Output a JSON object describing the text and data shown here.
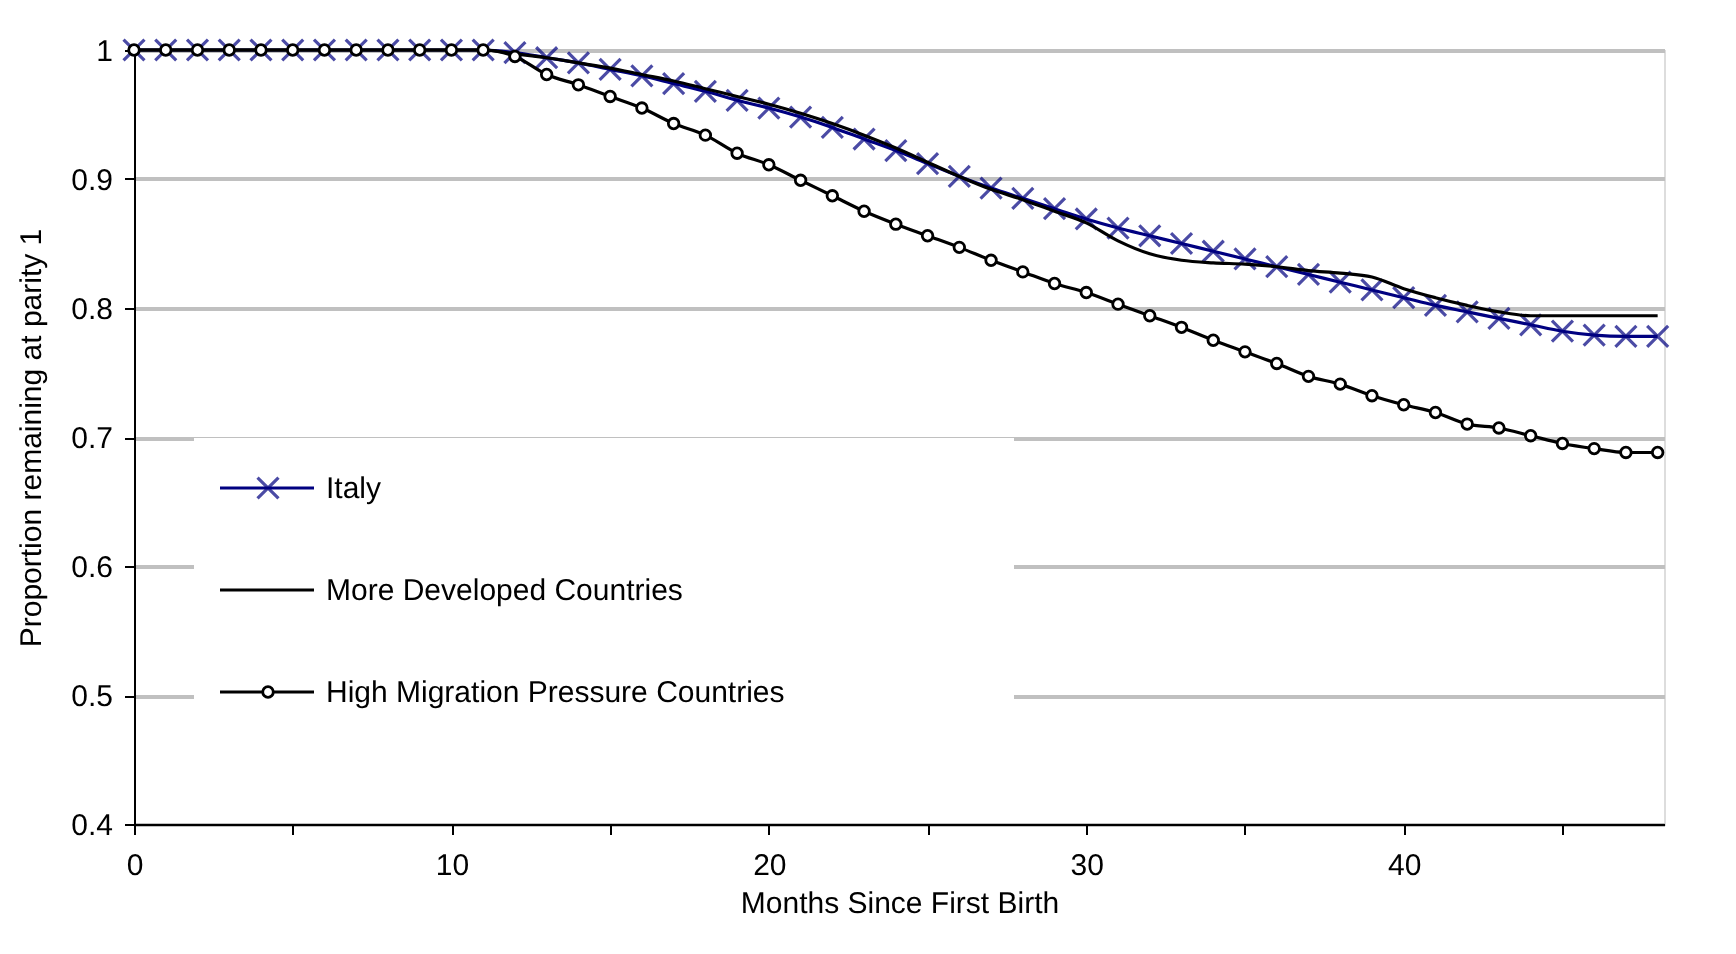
{
  "chart_data": {
    "type": "line",
    "xlabel": "Months Since First Birth",
    "ylabel": "Proportion remaining at parity 1",
    "x": [
      0,
      1,
      2,
      3,
      4,
      5,
      6,
      7,
      8,
      9,
      10,
      11,
      12,
      13,
      14,
      15,
      16,
      17,
      18,
      19,
      20,
      21,
      22,
      23,
      24,
      25,
      26,
      27,
      28,
      29,
      30,
      31,
      32,
      33,
      34,
      35,
      36,
      37,
      38,
      39,
      40,
      41,
      42,
      43,
      44,
      45,
      46,
      47,
      48
    ],
    "xlim": [
      0,
      48.2
    ],
    "xticks": [
      0,
      {
        "value": 5,
        "label": null
      },
      10,
      {
        "value": 15,
        "label": null
      },
      20,
      {
        "value": 25,
        "label": null
      },
      30,
      {
        "value": 35,
        "label": null
      },
      40,
      {
        "value": 45,
        "label": null
      }
    ],
    "ylim": [
      0.4,
      1
    ],
    "yticks": [
      0.4,
      0.5,
      0.6,
      0.7,
      0.8,
      0.9,
      {
        "value": 1,
        "label": "1"
      }
    ],
    "grid": "y",
    "legend": "bottom left",
    "line_style": "solid",
    "series": [
      {
        "name": "Italy",
        "color": "#000080",
        "marker": "cross",
        "values": [
          1,
          1,
          1,
          1,
          1,
          1,
          1,
          1,
          1,
          1,
          1,
          1,
          0.998,
          0.994,
          0.99,
          0.985,
          0.98,
          0.974,
          0.968,
          0.961,
          0.955,
          0.948,
          0.94,
          0.931,
          0.922,
          0.912,
          0.902,
          0.893,
          0.885,
          0.877,
          0.869,
          0.862,
          0.856,
          0.85,
          0.844,
          0.838,
          0.832,
          0.826,
          0.82,
          0.814,
          0.808,
          0.802,
          0.797,
          0.792,
          0.787,
          0.782,
          0.779,
          0.778,
          0.778
        ]
      },
      {
        "name": "More Developed Countries",
        "color": "#000000",
        "marker": "none",
        "values": [
          1,
          1,
          1,
          1,
          1,
          1,
          1,
          1,
          1,
          1,
          1,
          1,
          0.997,
          0.994,
          0.99,
          0.986,
          0.981,
          0.976,
          0.97,
          0.964,
          0.958,
          0.951,
          0.943,
          0.934,
          0.924,
          0.913,
          0.902,
          0.892,
          0.884,
          0.875,
          0.866,
          0.852,
          0.842,
          0.837,
          0.835,
          0.834,
          0.832,
          0.829,
          0.827,
          0.824,
          0.815,
          0.808,
          0.802,
          0.797,
          0.794,
          0.794,
          0.794,
          0.794,
          0.794
        ]
      },
      {
        "name": "High Migration Pressure Countries",
        "color": "#000000",
        "marker": "circle",
        "values": [
          1,
          1,
          1,
          1,
          1,
          1,
          1,
          1,
          1,
          1,
          1,
          1,
          0.995,
          0.981,
          0.973,
          0.964,
          0.955,
          0.943,
          0.934,
          0.92,
          0.911,
          0.899,
          0.887,
          0.875,
          0.865,
          0.856,
          0.847,
          0.837,
          0.828,
          0.819,
          0.812,
          0.803,
          0.794,
          0.785,
          0.775,
          0.766,
          0.757,
          0.747,
          0.741,
          0.732,
          0.725,
          0.719,
          0.71,
          0.707,
          0.701,
          0.695,
          0.691,
          0.688,
          0.688
        ]
      }
    ]
  }
}
